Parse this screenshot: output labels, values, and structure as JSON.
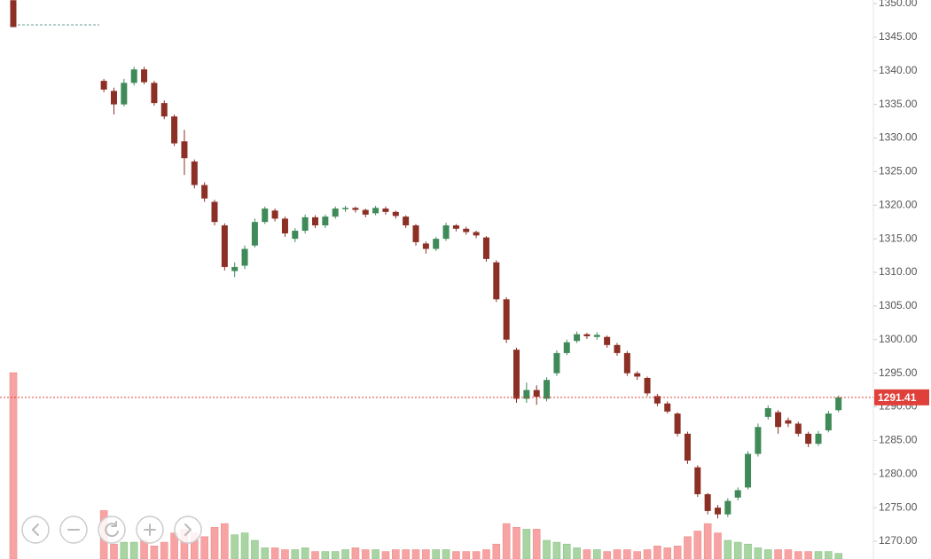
{
  "chart_data": {
    "type": "candlestick",
    "ylim": [
      1267.36,
      1350.53
    ],
    "yticks": [
      {
        "value": 1270,
        "label": "1270.00"
      },
      {
        "value": 1275,
        "label": "1275.00"
      },
      {
        "value": 1280,
        "label": "1280.00"
      },
      {
        "value": 1285,
        "label": "1285.00"
      },
      {
        "value": 1290,
        "label": "1290.00"
      },
      {
        "value": 1295,
        "label": "1295.00"
      },
      {
        "value": 1300,
        "label": "1300.00"
      },
      {
        "value": 1305,
        "label": "1305.00"
      },
      {
        "value": 1310,
        "label": "1310.00"
      },
      {
        "value": 1315,
        "label": "1315.00"
      },
      {
        "value": 1320,
        "label": "1320.00"
      },
      {
        "value": 1325,
        "label": "1325.00"
      },
      {
        "value": 1330,
        "label": "1330.00"
      },
      {
        "value": 1335,
        "label": "1335.00"
      },
      {
        "value": 1340,
        "label": "1340.00"
      },
      {
        "value": 1345,
        "label": "1345.00"
      },
      {
        "value": 1350,
        "label": "1350.00"
      }
    ],
    "last_price": 1291.41,
    "up_color": "#3f8a58",
    "down_color": "#8c2f25",
    "volume_up_color": "#a8d5a2",
    "volume_down_color": "#f7a3a3",
    "price_line_color": "#e0403a",
    "volume_lim": [
      0,
      100
    ],
    "open": [
      1350.5,
      null,
      null,
      null,
      null,
      null,
      null,
      null,
      null,
      1338.5,
      1337,
      1335,
      1338.2,
      1340.2,
      1338.2,
      1335.2,
      1333.2,
      1329.5,
      1326.5,
      1323,
      1320.5,
      1317,
      1310.2,
      1311,
      1314,
      1317.5,
      1319.2,
      1318,
      1315,
      1316.2,
      1318.2,
      1317,
      1318.3,
      1319.4,
      1319.6,
      1319.3,
      1318.8,
      1319.5,
      1319,
      1318.3,
      1317,
      1314.3,
      1313.5,
      1315,
      1317,
      1316.5,
      1316,
      1315.2,
      1311.5,
      1306,
      1298.5,
      1291.2,
      1292.5,
      1291.2,
      1295,
      1298,
      1299.8,
      1300.8,
      1300.4,
      1300.4,
      1299.2,
      1298,
      1295,
      1294.3,
      1291.6,
      1290.5,
      1289,
      1286,
      1281,
      1277,
      1275,
      1274,
      1276.5,
      1278,
      1283,
      1288.5,
      1289.2,
      1288,
      1287.5,
      1286,
      1284.5,
      1286.5,
      1289.5
    ],
    "high": [
      1350.5,
      null,
      null,
      null,
      null,
      null,
      null,
      null,
      null,
      1338.8,
      1337.5,
      1338.8,
      1340.6,
      1340.6,
      1338.5,
      1335.6,
      1333.5,
      1331.2,
      1326.8,
      1323.4,
      1320.8,
      1317.3,
      1311.5,
      1314,
      1318,
      1319.8,
      1319.5,
      1318.3,
      1316.6,
      1318.6,
      1318.5,
      1318.6,
      1319.8,
      1319.9,
      1319.8,
      1319.5,
      1319.9,
      1319.8,
      1319.2,
      1318.5,
      1317.2,
      1314.6,
      1315.3,
      1317.4,
      1317.2,
      1316.8,
      1316.2,
      1315.4,
      1311.8,
      1306.3,
      1298.8,
      1293.6,
      1293.2,
      1294.4,
      1298.4,
      1300,
      1301.2,
      1301,
      1301.1,
      1300.6,
      1299.5,
      1298.3,
      1295.3,
      1294.5,
      1291.9,
      1290.8,
      1289.2,
      1286.3,
      1281.3,
      1277.2,
      1275.4,
      1276.4,
      1278,
      1283.4,
      1287.5,
      1290.2,
      1289.5,
      1288.4,
      1287.8,
      1286.3,
      1286.4,
      1289.4,
      1291.7
    ],
    "low": [
      1346.5,
      null,
      null,
      null,
      null,
      null,
      null,
      null,
      null,
      1336.8,
      1333.5,
      1334.7,
      1337.8,
      1338,
      1334.8,
      1332.8,
      1328.8,
      1324.5,
      1322.5,
      1320.5,
      1317,
      1310.3,
      1309.3,
      1310.5,
      1313.7,
      1317.2,
      1317.6,
      1315.3,
      1314.5,
      1315.8,
      1316.6,
      1316.6,
      1318,
      1319,
      1318.9,
      1318.2,
      1318.5,
      1318.6,
      1318,
      1316.6,
      1314,
      1312.8,
      1313.2,
      1314.7,
      1316.1,
      1315.6,
      1315.1,
      1311.6,
      1305.6,
      1299.5,
      1290.6,
      1290.6,
      1290.3,
      1290.8,
      1294.6,
      1297.7,
      1299.5,
      1300.1,
      1300,
      1298.8,
      1297.6,
      1294.6,
      1294,
      1291.6,
      1290.1,
      1289,
      1285.6,
      1281.5,
      1276.6,
      1274,
      1273.4,
      1273.6,
      1276.1,
      1277.7,
      1282.6,
      1288.1,
      1286,
      1287,
      1285.6,
      1284,
      1284.2,
      1286.2,
      1289.2
    ],
    "close": [
      1346.5,
      null,
      null,
      null,
      null,
      null,
      null,
      null,
      null,
      1337.2,
      1335,
      1338.2,
      1340.2,
      1338.3,
      1335.2,
      1333.2,
      1329.2,
      1327,
      1323,
      1321,
      1317.5,
      1310.8,
      1310.8,
      1313.5,
      1317.5,
      1319.5,
      1318,
      1315.8,
      1316.2,
      1318.2,
      1317,
      1318.3,
      1319.5,
      1319.6,
      1319.3,
      1318.6,
      1319.6,
      1319,
      1318.4,
      1317,
      1314.5,
      1313.5,
      1315,
      1317,
      1316.5,
      1316,
      1315.5,
      1312,
      1306,
      1300,
      1291.2,
      1292.5,
      1291.5,
      1294,
      1298,
      1299.6,
      1300.8,
      1300.5,
      1300.7,
      1299.2,
      1298,
      1295,
      1294.5,
      1292,
      1290.5,
      1289.3,
      1286,
      1282,
      1277,
      1274.5,
      1274,
      1276,
      1277.6,
      1283,
      1287,
      1289.8,
      1287,
      1287.5,
      1286,
      1284.5,
      1286,
      1289,
      1291.41
    ],
    "volume": [
      100,
      null,
      null,
      null,
      null,
      null,
      null,
      null,
      null,
      26,
      8,
      9,
      9,
      10,
      7,
      9,
      14,
      16,
      14,
      12,
      17,
      19,
      13,
      14,
      10,
      6,
      6,
      5,
      5,
      6,
      4,
      4,
      4,
      5,
      6,
      5,
      5,
      4,
      5,
      5,
      5,
      5,
      5,
      5,
      4,
      4,
      4,
      5,
      8,
      19,
      17,
      16,
      16,
      10,
      9,
      8,
      6,
      5,
      5,
      4,
      5,
      5,
      4,
      5,
      7,
      6,
      7,
      12,
      15,
      19,
      14,
      10,
      9,
      8,
      6,
      5,
      5,
      5,
      4,
      4,
      4,
      4,
      3
    ]
  }
}
